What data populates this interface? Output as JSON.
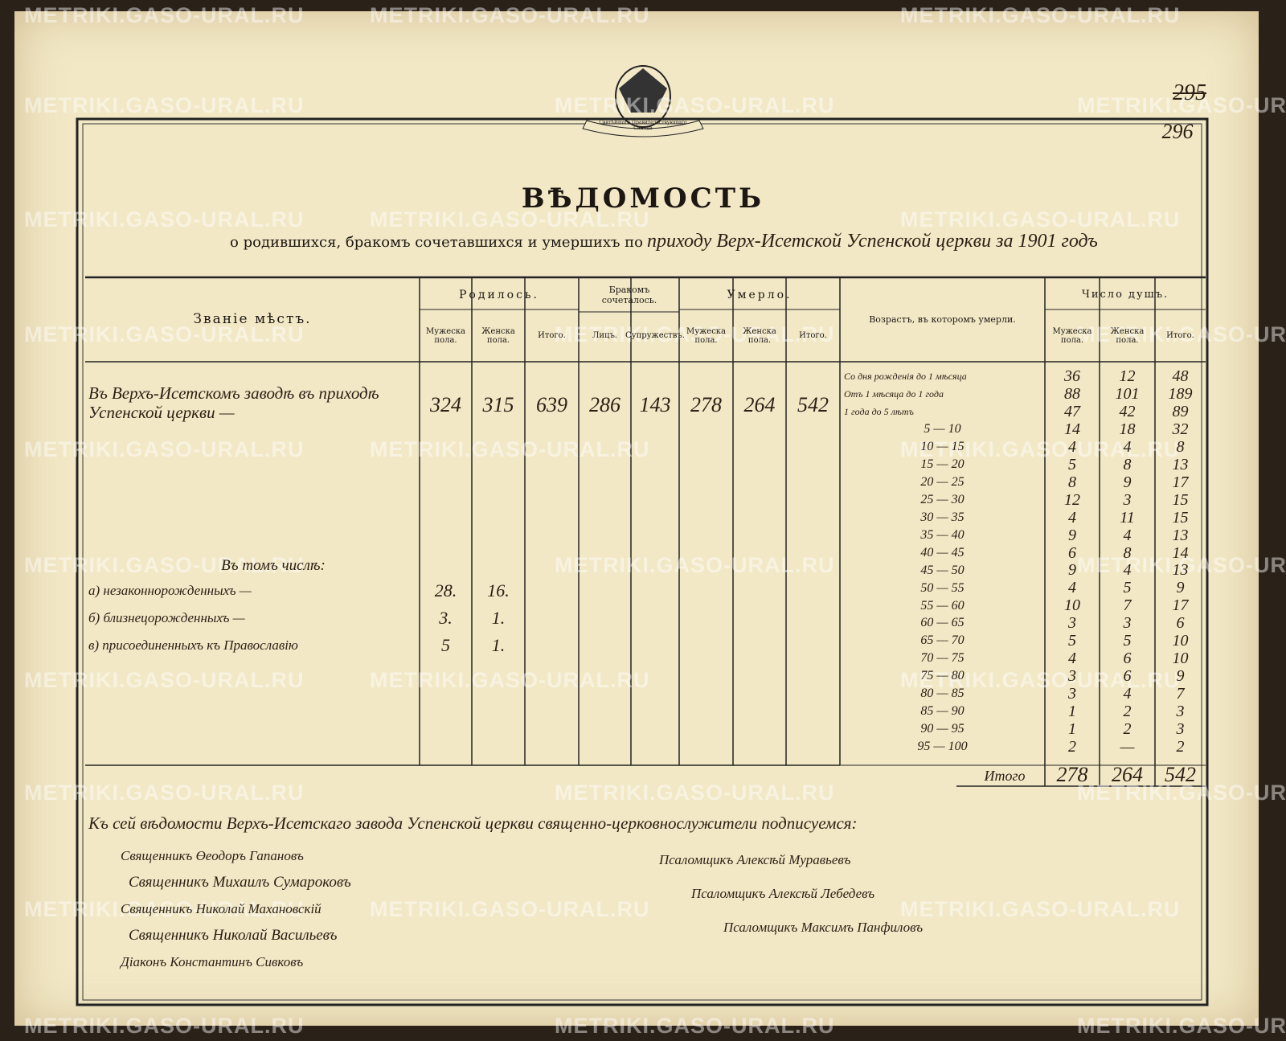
{
  "watermark": "METRIKI.GASO-URAL.RU",
  "sheet_numbers": {
    "old": "295",
    "new": "296"
  },
  "emblem_motto": "Святѣйшаго Правительствующаго Синода",
  "header": {
    "title": "ВѢДОМОСТЬ",
    "subtitle": "о родившихся, бракомъ сочетавшихся и умершихъ по",
    "subtitle_handwritten": "приходу Верх-Исетской Успенской церкви за 1901 годъ"
  },
  "table": {
    "header": {
      "place": "Званіе мѣстъ.",
      "born": {
        "label": "Родилось.",
        "male": "Мужеска пола.",
        "female": "Женска пола.",
        "total": "Итого."
      },
      "married": {
        "label": "Бракомъ сочеталось.",
        "persons": "Лицъ.",
        "couples": "Супружествъ."
      },
      "died": {
        "label": "Умерло.",
        "male": "Мужеска пола.",
        "female": "Женска пола.",
        "total": "Итого."
      },
      "age": "Возрастъ, въ которомъ умерли.",
      "souls": {
        "label": "Число душъ.",
        "male": "Мужеска пола.",
        "female": "Женска пола.",
        "total": "Итого."
      }
    },
    "main_row": {
      "place": "Въ Верхъ-Исетскомъ заводѣ въ приходѣ Успенской церкви —",
      "values": [
        "324",
        "315",
        "639",
        "286",
        "143",
        "278",
        "264",
        "542"
      ]
    },
    "sub_heading": "Въ томъ числѣ:",
    "sub_rows": [
      {
        "label": "а) незаконнорожденныхъ —",
        "male": "28.",
        "female": "16."
      },
      {
        "label": "б) близнецорожденныхъ —",
        "male": "3.",
        "female": "1."
      },
      {
        "label": "в) присоединенныхъ къ Православію",
        "male": "5",
        "female": "1."
      }
    ],
    "age_rows": [
      {
        "age": "Со дня рожденія до 1 мѣсяца",
        "male": "36",
        "female": "12",
        "total": "48"
      },
      {
        "age": "Отъ 1 мѣсяца до 1 года",
        "male": "88",
        "female": "101",
        "total": "189"
      },
      {
        "age": "1 года до 5 лѣтъ",
        "male": "47",
        "female": "42",
        "total": "89"
      },
      {
        "age": "5 — 10",
        "male": "14",
        "female": "18",
        "total": "32"
      },
      {
        "age": "10 — 15",
        "male": "4",
        "female": "4",
        "total": "8"
      },
      {
        "age": "15 — 20",
        "male": "5",
        "female": "8",
        "total": "13"
      },
      {
        "age": "20 — 25",
        "male": "8",
        "female": "9",
        "total": "17"
      },
      {
        "age": "25 — 30",
        "male": "12",
        "female": "3",
        "total": "15"
      },
      {
        "age": "30 — 35",
        "male": "4",
        "female": "11",
        "total": "15"
      },
      {
        "age": "35 — 40",
        "male": "9",
        "female": "4",
        "total": "13"
      },
      {
        "age": "40 — 45",
        "male": "6",
        "female": "8",
        "total": "14"
      },
      {
        "age": "45 — 50",
        "male": "9",
        "female": "4",
        "total": "13"
      },
      {
        "age": "50 — 55",
        "male": "4",
        "female": "5",
        "total": "9"
      },
      {
        "age": "55 — 60",
        "male": "10",
        "female": "7",
        "total": "17"
      },
      {
        "age": "60 — 65",
        "male": "3",
        "female": "3",
        "total": "6"
      },
      {
        "age": "65 — 70",
        "male": "5",
        "female": "5",
        "total": "10"
      },
      {
        "age": "70 — 75",
        "male": "4",
        "female": "6",
        "total": "10"
      },
      {
        "age": "75 — 80",
        "male": "3",
        "female": "6",
        "total": "9"
      },
      {
        "age": "80 — 85",
        "male": "3",
        "female": "4",
        "total": "7"
      },
      {
        "age": "85 — 90",
        "male": "1",
        "female": "2",
        "total": "3"
      },
      {
        "age": "90 — 95",
        "male": "1",
        "female": "2",
        "total": "3"
      },
      {
        "age": "95 — 100",
        "male": "2",
        "female": "—",
        "total": "2"
      }
    ],
    "age_total": {
      "label": "Итого",
      "male": "278",
      "female": "264",
      "total": "542"
    }
  },
  "signatures": {
    "intro": "Къ сей вѣдомости Верхъ-Исетскаго завода Успенской церкви священно-церковнослужители подписуемся:",
    "left": [
      "Священникъ Өеодоръ Гапановъ",
      "Священникъ Михаилъ Сумароковъ",
      "Священникъ Николай Махановскій",
      "Священникъ Николай Васильевъ",
      "Діаконъ Константинъ Сивковъ"
    ],
    "right": [
      "Псаломщикъ Алексѣй Муравьевъ",
      "Псаломщикъ Алексѣй Лебедевъ",
      "Псаломщикъ Максимъ Панфиловъ"
    ]
  }
}
